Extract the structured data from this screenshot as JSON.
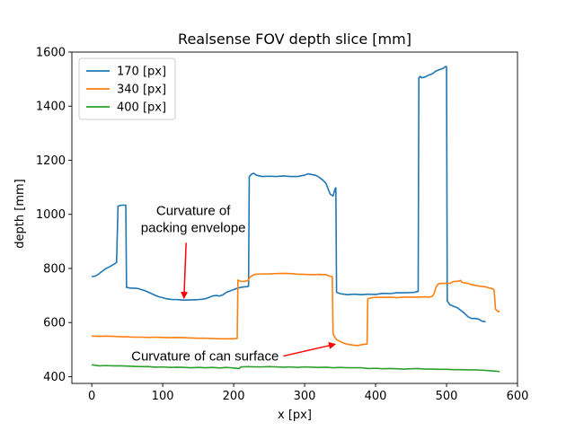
{
  "chart_data": {
    "type": "line",
    "title": "Realsense FOV depth slice [mm]",
    "xlabel": "x [px]",
    "ylabel": "depth [mm]",
    "xlim": [
      -28,
      600
    ],
    "ylim": [
      375,
      1600
    ],
    "xticks": [
      0,
      100,
      200,
      300,
      400,
      500,
      600
    ],
    "yticks": [
      400,
      600,
      800,
      1000,
      1200,
      1400,
      1600
    ],
    "grid": false,
    "legend_position": "top-left",
    "series": [
      {
        "name": "170 [px]",
        "color": "#1f77b4",
        "points": [
          [
            0,
            770
          ],
          [
            5,
            772
          ],
          [
            10,
            780
          ],
          [
            15,
            790
          ],
          [
            20,
            800
          ],
          [
            25,
            806
          ],
          [
            30,
            814
          ],
          [
            35,
            822
          ],
          [
            37,
            1030
          ],
          [
            40,
            1033
          ],
          [
            43,
            1034
          ],
          [
            48,
            1034
          ],
          [
            49,
            730
          ],
          [
            55,
            727
          ],
          [
            60,
            727
          ],
          [
            65,
            726
          ],
          [
            70,
            722
          ],
          [
            75,
            718
          ],
          [
            80,
            712
          ],
          [
            85,
            706
          ],
          [
            90,
            700
          ],
          [
            95,
            695
          ],
          [
            100,
            692
          ],
          [
            105,
            688
          ],
          [
            110,
            686
          ],
          [
            115,
            685
          ],
          [
            120,
            685
          ],
          [
            125,
            684
          ],
          [
            130,
            683
          ],
          [
            135,
            683
          ],
          [
            140,
            684
          ],
          [
            145,
            684
          ],
          [
            150,
            685
          ],
          [
            155,
            686
          ],
          [
            160,
            688
          ],
          [
            165,
            693
          ],
          [
            170,
            698
          ],
          [
            175,
            700
          ],
          [
            180,
            698
          ],
          [
            185,
            703
          ],
          [
            190,
            712
          ],
          [
            195,
            717
          ],
          [
            200,
            722
          ],
          [
            205,
            727
          ],
          [
            210,
            730
          ],
          [
            215,
            732
          ],
          [
            220,
            733
          ],
          [
            221,
            735
          ],
          [
            222,
            1140
          ],
          [
            225,
            1148
          ],
          [
            228,
            1152
          ],
          [
            232,
            1145
          ],
          [
            240,
            1140
          ],
          [
            250,
            1141
          ],
          [
            260,
            1140
          ],
          [
            270,
            1142
          ],
          [
            280,
            1140
          ],
          [
            290,
            1140
          ],
          [
            300,
            1145
          ],
          [
            305,
            1150
          ],
          [
            310,
            1147
          ],
          [
            315,
            1145
          ],
          [
            320,
            1138
          ],
          [
            325,
            1128
          ],
          [
            330,
            1115
          ],
          [
            333,
            1095
          ],
          [
            336,
            1075
          ],
          [
            340,
            1068
          ],
          [
            343,
            1095
          ],
          [
            344,
            1098
          ],
          [
            345,
            712
          ],
          [
            350,
            707
          ],
          [
            360,
            703
          ],
          [
            370,
            705
          ],
          [
            380,
            703
          ],
          [
            390,
            705
          ],
          [
            400,
            704
          ],
          [
            410,
            708
          ],
          [
            420,
            707
          ],
          [
            430,
            710
          ],
          [
            440,
            710
          ],
          [
            450,
            711
          ],
          [
            455,
            712
          ],
          [
            460,
            715
          ],
          [
            461,
            1505
          ],
          [
            463,
            1510
          ],
          [
            465,
            1505
          ],
          [
            470,
            1508
          ],
          [
            475,
            1515
          ],
          [
            480,
            1520
          ],
          [
            485,
            1530
          ],
          [
            490,
            1535
          ],
          [
            495,
            1540
          ],
          [
            499,
            1547
          ],
          [
            500,
            1545
          ],
          [
            501,
            680
          ],
          [
            505,
            665
          ],
          [
            510,
            660
          ],
          [
            515,
            655
          ],
          [
            520,
            645
          ],
          [
            525,
            635
          ],
          [
            530,
            622
          ],
          [
            535,
            615
          ],
          [
            540,
            615
          ],
          [
            545,
            613
          ],
          [
            550,
            605
          ],
          [
            555,
            603
          ]
        ]
      },
      {
        "name": "340 [px]",
        "color": "#ff7f0e",
        "points": [
          [
            0,
            550
          ],
          [
            10,
            549
          ],
          [
            20,
            550
          ],
          [
            30,
            549
          ],
          [
            40,
            548
          ],
          [
            50,
            547
          ],
          [
            60,
            546
          ],
          [
            70,
            546
          ],
          [
            80,
            545
          ],
          [
            90,
            546
          ],
          [
            100,
            545
          ],
          [
            110,
            544
          ],
          [
            120,
            545
          ],
          [
            130,
            544
          ],
          [
            140,
            543
          ],
          [
            150,
            542
          ],
          [
            160,
            542
          ],
          [
            170,
            541
          ],
          [
            180,
            540
          ],
          [
            190,
            540
          ],
          [
            200,
            540
          ],
          [
            205,
            542
          ],
          [
            206,
            757
          ],
          [
            210,
            752
          ],
          [
            215,
            752
          ],
          [
            220,
            755
          ],
          [
            222,
            765
          ],
          [
            225,
            772
          ],
          [
            230,
            778
          ],
          [
            240,
            780
          ],
          [
            250,
            780
          ],
          [
            260,
            781
          ],
          [
            270,
            782
          ],
          [
            280,
            781
          ],
          [
            290,
            779
          ],
          [
            300,
            778
          ],
          [
            310,
            777
          ],
          [
            320,
            778
          ],
          [
            330,
            777
          ],
          [
            335,
            772
          ],
          [
            339,
            770
          ],
          [
            340,
            560
          ],
          [
            342,
            548
          ],
          [
            345,
            537
          ],
          [
            350,
            530
          ],
          [
            355,
            524
          ],
          [
            360,
            520
          ],
          [
            365,
            518
          ],
          [
            370,
            516
          ],
          [
            375,
            515
          ],
          [
            380,
            518
          ],
          [
            385,
            520
          ],
          [
            388,
            521
          ],
          [
            389,
            688
          ],
          [
            395,
            692
          ],
          [
            400,
            693
          ],
          [
            410,
            693
          ],
          [
            420,
            694
          ],
          [
            430,
            692
          ],
          [
            440,
            694
          ],
          [
            450,
            694
          ],
          [
            460,
            694
          ],
          [
            470,
            695
          ],
          [
            475,
            694
          ],
          [
            480,
            697
          ],
          [
            483,
            710
          ],
          [
            485,
            730
          ],
          [
            488,
            742
          ],
          [
            492,
            745
          ],
          [
            500,
            745
          ],
          [
            505,
            745
          ],
          [
            510,
            752
          ],
          [
            515,
            752
          ],
          [
            520,
            756
          ],
          [
            522,
            748
          ],
          [
            530,
            745
          ],
          [
            535,
            740
          ],
          [
            540,
            738
          ],
          [
            545,
            735
          ],
          [
            555,
            732
          ],
          [
            560,
            728
          ],
          [
            565,
            725
          ],
          [
            567,
            720
          ],
          [
            569,
            650
          ],
          [
            572,
            642
          ],
          [
            575,
            640
          ]
        ]
      },
      {
        "name": "400 [px]",
        "color": "#2ca02c",
        "points": [
          [
            0,
            444
          ],
          [
            5,
            442
          ],
          [
            10,
            440
          ],
          [
            20,
            441
          ],
          [
            30,
            440
          ],
          [
            40,
            440
          ],
          [
            50,
            439
          ],
          [
            60,
            438
          ],
          [
            70,
            437
          ],
          [
            80,
            437
          ],
          [
            90,
            435
          ],
          [
            100,
            436
          ],
          [
            110,
            434
          ],
          [
            120,
            435
          ],
          [
            130,
            434
          ],
          [
            140,
            433
          ],
          [
            150,
            434
          ],
          [
            160,
            433
          ],
          [
            170,
            434
          ],
          [
            180,
            432
          ],
          [
            190,
            434
          ],
          [
            200,
            432
          ],
          [
            208,
            430
          ],
          [
            210,
            436
          ],
          [
            220,
            437
          ],
          [
            230,
            436
          ],
          [
            240,
            436
          ],
          [
            250,
            437
          ],
          [
            260,
            436
          ],
          [
            270,
            435
          ],
          [
            280,
            436
          ],
          [
            290,
            434
          ],
          [
            300,
            436
          ],
          [
            310,
            435
          ],
          [
            320,
            434
          ],
          [
            330,
            435
          ],
          [
            340,
            433
          ],
          [
            350,
            434
          ],
          [
            360,
            433
          ],
          [
            370,
            433
          ],
          [
            380,
            433
          ],
          [
            390,
            430
          ],
          [
            400,
            431
          ],
          [
            410,
            429
          ],
          [
            420,
            430
          ],
          [
            430,
            429
          ],
          [
            440,
            428
          ],
          [
            450,
            429
          ],
          [
            460,
            430
          ],
          [
            470,
            428
          ],
          [
            480,
            428
          ],
          [
            490,
            427
          ],
          [
            500,
            427
          ],
          [
            510,
            426
          ],
          [
            520,
            426
          ],
          [
            530,
            425
          ],
          [
            540,
            425
          ],
          [
            550,
            424
          ],
          [
            560,
            422
          ],
          [
            570,
            420
          ],
          [
            575,
            419
          ]
        ]
      }
    ],
    "annotations": [
      {
        "text_lines": [
          "Curvature of",
          "packing envelope"
        ],
        "arrow_from": [
          133,
          895
        ],
        "arrow_to": [
          130,
          690
        ]
      },
      {
        "text_lines": [
          "Curvature of can surface"
        ],
        "arrow_from": [
          270,
          476
        ],
        "arrow_to": [
          343,
          520
        ]
      }
    ]
  }
}
